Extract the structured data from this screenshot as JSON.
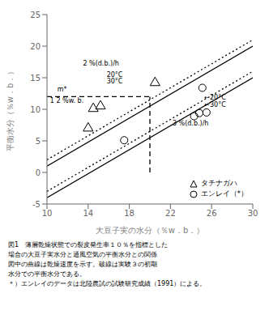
{
  "chart_data": {
    "type": "line",
    "xlabel": "大豆子実の水分（％w．b．）",
    "ylabel": "平衡水分（％w．b．）",
    "xlim": [
      10,
      30
    ],
    "ylim": [
      -5,
      25
    ],
    "xticks": [
      10,
      14,
      18,
      22,
      26,
      30
    ],
    "yticks": [
      -5,
      0,
      5,
      10,
      15,
      20,
      25
    ],
    "grid": false,
    "legend": "lower right",
    "series": [
      {
        "type": "line",
        "line_style": "dotted",
        "color": "black",
        "x": [
          10,
          30
        ],
        "values": [
          2.0,
          21.0
        ]
      },
      {
        "type": "line",
        "line_style": "solid",
        "color": "black",
        "x": [
          10,
          30
        ],
        "values": [
          1.0,
          20.0
        ]
      },
      {
        "type": "line",
        "line_style": "dotted",
        "color": "black",
        "x": [
          10,
          30
        ],
        "values": [
          -3.0,
          16.0
        ]
      },
      {
        "type": "line",
        "line_style": "solid",
        "color": "black",
        "x": [
          10,
          30
        ],
        "values": [
          -4.0,
          15.0
        ]
      },
      {
        "type": "line",
        "line_style": "dashed",
        "color": "black",
        "x": [
          10,
          20
        ],
        "values": [
          12,
          12
        ]
      },
      {
        "type": "line",
        "line_style": "dashed",
        "color": "black",
        "x": [
          20,
          20
        ],
        "values": [
          0,
          12
        ]
      },
      {
        "name": "タチナガハ",
        "type": "scatter",
        "marker": "triangle",
        "color": "black",
        "x": [
          14.0,
          14.5,
          15.2,
          20.5
        ],
        "values": [
          7.0,
          10.1,
          10.5,
          14.2
        ]
      },
      {
        "name": "エンレイ（*）",
        "type": "scatter",
        "marker": "circle",
        "color": "black",
        "x": [
          17.5,
          24.3,
          24.8,
          25.1,
          25.5
        ],
        "values": [
          5.1,
          8.9,
          9.4,
          13.4,
          9.5
        ]
      }
    ],
    "annotations": [
      {
        "text": "2 %(d.b.)/h",
        "x": 13.5,
        "y": 17.3
      },
      {
        "text": "20°C",
        "x": 15.8,
        "y": 15.5
      },
      {
        "text": "30°C",
        "x": 15.8,
        "y": 14.4
      },
      {
        "text": "m*",
        "x": 11.0,
        "y": 13.2
      },
      {
        "text": "1 2 %w. b.",
        "x": 10.3,
        "y": 11.3
      },
      {
        "text": "3 %(d.b.)/h",
        "x": 22.2,
        "y": 7.8
      },
      {
        "text": "←20°C",
        "x": 25.3,
        "y": 11.8
      },
      {
        "text": "←30°C",
        "x": 25.3,
        "y": 10.7
      }
    ],
    "caption": [
      "図1　薄層乾燥状態での裂皮発生率１０％を指標とした",
      "場合の大豆子実水分と通風空気の平衡水分との関係",
      "図中の曲線は乾燥速度を示す。破線は実験３の初期",
      "水分での平衡水分である。",
      "＊）エンレイのデータは北陸農試の試験研究成績（1991）による。"
    ]
  }
}
